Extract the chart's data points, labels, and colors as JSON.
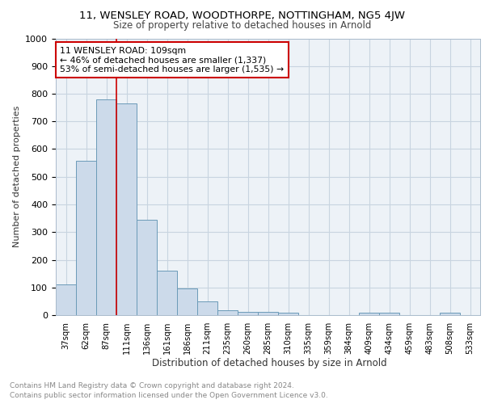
{
  "title1": "11, WENSLEY ROAD, WOODTHORPE, NOTTINGHAM, NG5 4JW",
  "title2": "Size of property relative to detached houses in Arnold",
  "xlabel": "Distribution of detached houses by size in Arnold",
  "ylabel": "Number of detached properties",
  "bin_labels": [
    "37sqm",
    "62sqm",
    "87sqm",
    "111sqm",
    "136sqm",
    "161sqm",
    "186sqm",
    "211sqm",
    "235sqm",
    "260sqm",
    "285sqm",
    "310sqm",
    "335sqm",
    "359sqm",
    "384sqm",
    "409sqm",
    "434sqm",
    "459sqm",
    "483sqm",
    "508sqm",
    "533sqm"
  ],
  "bar_heights": [
    112,
    557,
    780,
    765,
    345,
    160,
    97,
    49,
    18,
    12,
    12,
    8,
    0,
    0,
    0,
    8,
    8,
    0,
    0,
    8,
    0
  ],
  "bar_color": "#ccdaea",
  "bar_edge_color": "#6b9ab8",
  "grid_color": "#c8d4e0",
  "vline_color": "#cc0000",
  "annotation_text": "11 WENSLEY ROAD: 109sqm\n← 46% of detached houses are smaller (1,337)\n53% of semi-detached houses are larger (1,535) →",
  "annotation_box_color": "#ffffff",
  "annotation_box_edge": "#cc0000",
  "ylim": [
    0,
    1000
  ],
  "yticks": [
    0,
    100,
    200,
    300,
    400,
    500,
    600,
    700,
    800,
    900,
    1000
  ],
  "footer1": "Contains HM Land Registry data © Crown copyright and database right 2024.",
  "footer2": "Contains public sector information licensed under the Open Government Licence v3.0.",
  "bg_color": "#edf2f7"
}
